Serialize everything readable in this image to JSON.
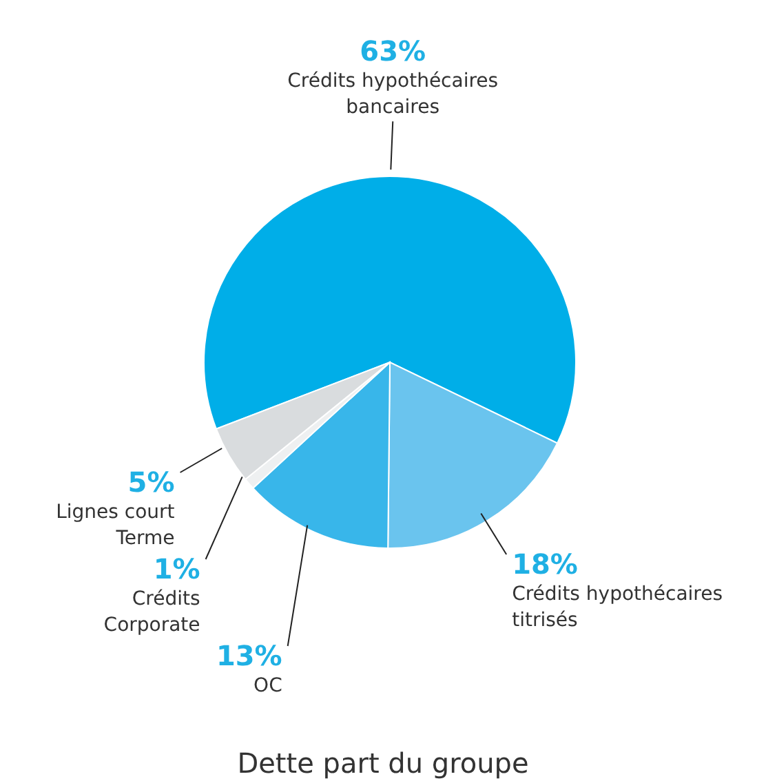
{
  "chart_data": {
    "type": "pie",
    "title": "Dette part du groupe",
    "categories": [
      "Crédits hypothécaires bancaires",
      "Crédits hypothécaires titrisés",
      "OC",
      "Crédits Corporate",
      "Lignes court Terme"
    ],
    "values": [
      63,
      18,
      13,
      1,
      5
    ],
    "value_labels": [
      "63%",
      "18%",
      "13%",
      "1%",
      "5%"
    ],
    "colors": [
      "#00aee8",
      "#6ac4ee",
      "#38b6ea",
      "#eef0f1",
      "#d9dcde"
    ]
  }
}
